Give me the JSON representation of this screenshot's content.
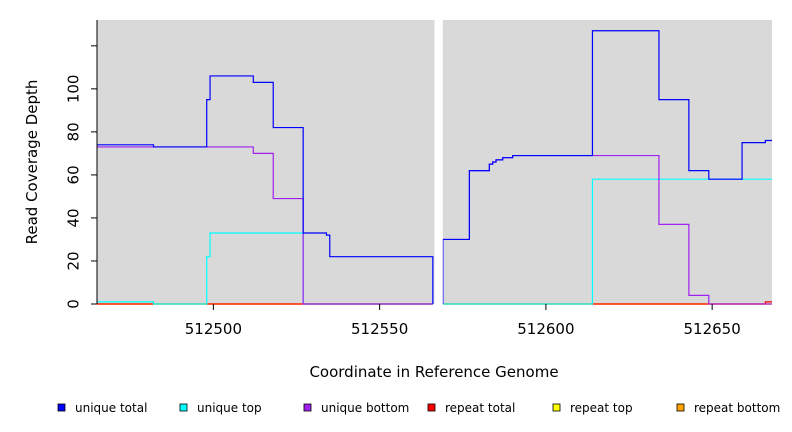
{
  "chart_data": {
    "type": "line",
    "title": "",
    "xlabel": "Coordinate in Reference Genome",
    "ylabel": "Read Coverage Depth",
    "xlim": [
      512465,
      512668
    ],
    "ylim": [
      0,
      132
    ],
    "x_ticks": [
      512500,
      512550,
      512600,
      512650
    ],
    "y_ticks": [
      0,
      20,
      40,
      60,
      80,
      100
    ],
    "gap": [
      512566.5,
      512569.0
    ],
    "grid": false,
    "legend_position": "bottom",
    "series": [
      {
        "name": "unique total",
        "color": "#0000ff",
        "segments": [
          [
            [
              512465,
              74
            ],
            [
              512482,
              74
            ],
            [
              512482,
              73
            ],
            [
              512498,
              73
            ],
            [
              512498,
              95
            ],
            [
              512499,
              95
            ],
            [
              512499,
              106
            ],
            [
              512512,
              106
            ],
            [
              512512,
              103
            ],
            [
              512518,
              103
            ],
            [
              512518,
              82
            ],
            [
              512527,
              82
            ],
            [
              512527,
              33
            ],
            [
              512534,
              33
            ],
            [
              512534,
              32
            ],
            [
              512535,
              32
            ],
            [
              512535,
              22
            ],
            [
              512566,
              22
            ],
            [
              512566,
              0
            ]
          ],
          [
            [
              512569,
              0
            ],
            [
              512569,
              30
            ],
            [
              512577,
              30
            ],
            [
              512577,
              62
            ],
            [
              512583,
              62
            ],
            [
              512583,
              65
            ],
            [
              512584,
              65
            ],
            [
              512584,
              66
            ],
            [
              512585,
              66
            ],
            [
              512585,
              67
            ],
            [
              512587,
              67
            ],
            [
              512587,
              68
            ],
            [
              512590,
              68
            ],
            [
              512590,
              69
            ],
            [
              512614,
              69
            ],
            [
              512614,
              127
            ],
            [
              512634,
              127
            ],
            [
              512634,
              95
            ],
            [
              512643,
              95
            ],
            [
              512643,
              62
            ],
            [
              512649,
              62
            ],
            [
              512649,
              58
            ],
            [
              512659,
              58
            ],
            [
              512659,
              75
            ],
            [
              512666,
              75
            ],
            [
              512666,
              76
            ],
            [
              512668,
              76
            ]
          ]
        ]
      },
      {
        "name": "unique top",
        "color": "#00ffff",
        "segments": [
          [
            [
              512465,
              1
            ],
            [
              512482,
              1
            ],
            [
              512482,
              0
            ],
            [
              512498,
              0
            ],
            [
              512498,
              22
            ],
            [
              512499,
              22
            ],
            [
              512499,
              33
            ],
            [
              512527,
              33
            ],
            [
              512527,
              0
            ],
            [
              512566,
              0
            ]
          ],
          [
            [
              512569,
              0
            ],
            [
              512614,
              0
            ],
            [
              512614,
              58
            ],
            [
              512649,
              58
            ],
            [
              512668,
              58
            ]
          ]
        ]
      },
      {
        "name": "unique bottom",
        "color": "#a020f0",
        "segments": [
          [
            [
              512465,
              73
            ],
            [
              512512,
              73
            ],
            [
              512512,
              70
            ],
            [
              512518,
              70
            ],
            [
              512518,
              49
            ],
            [
              512527,
              49
            ],
            [
              512527,
              0
            ],
            [
              512566,
              0
            ]
          ],
          [
            [
              512569,
              0
            ],
            [
              512569,
              30
            ],
            [
              512577,
              30
            ],
            [
              512577,
              62
            ],
            [
              512583,
              62
            ],
            [
              512583,
              65
            ],
            [
              512584,
              65
            ],
            [
              512584,
              66
            ],
            [
              512585,
              66
            ],
            [
              512585,
              67
            ],
            [
              512587,
              67
            ],
            [
              512587,
              68
            ],
            [
              512590,
              68
            ],
            [
              512590,
              69
            ],
            [
              512634,
              69
            ],
            [
              512634,
              37
            ],
            [
              512643,
              37
            ],
            [
              512643,
              4
            ],
            [
              512649,
              4
            ],
            [
              512649,
              0
            ],
            [
              512668,
              0
            ]
          ]
        ]
      },
      {
        "name": "repeat total",
        "color": "#ff0000",
        "segments": [
          [
            [
              512465,
              0
            ],
            [
              512566,
              0
            ]
          ],
          [
            [
              512569,
              0
            ],
            [
              512666,
              0
            ],
            [
              512666,
              1
            ],
            [
              512668,
              1
            ]
          ]
        ]
      },
      {
        "name": "repeat top",
        "color": "#ffff00",
        "segments": [
          [
            [
              512465,
              0
            ],
            [
              512566,
              0
            ]
          ],
          [
            [
              512569,
              0
            ],
            [
              512668,
              0
            ]
          ]
        ]
      },
      {
        "name": "repeat bottom",
        "color": "#ffa500",
        "segments": [
          [
            [
              512465,
              0
            ],
            [
              512566,
              0
            ]
          ],
          [
            [
              512569,
              0
            ],
            [
              512668,
              0
            ]
          ]
        ]
      }
    ]
  }
}
